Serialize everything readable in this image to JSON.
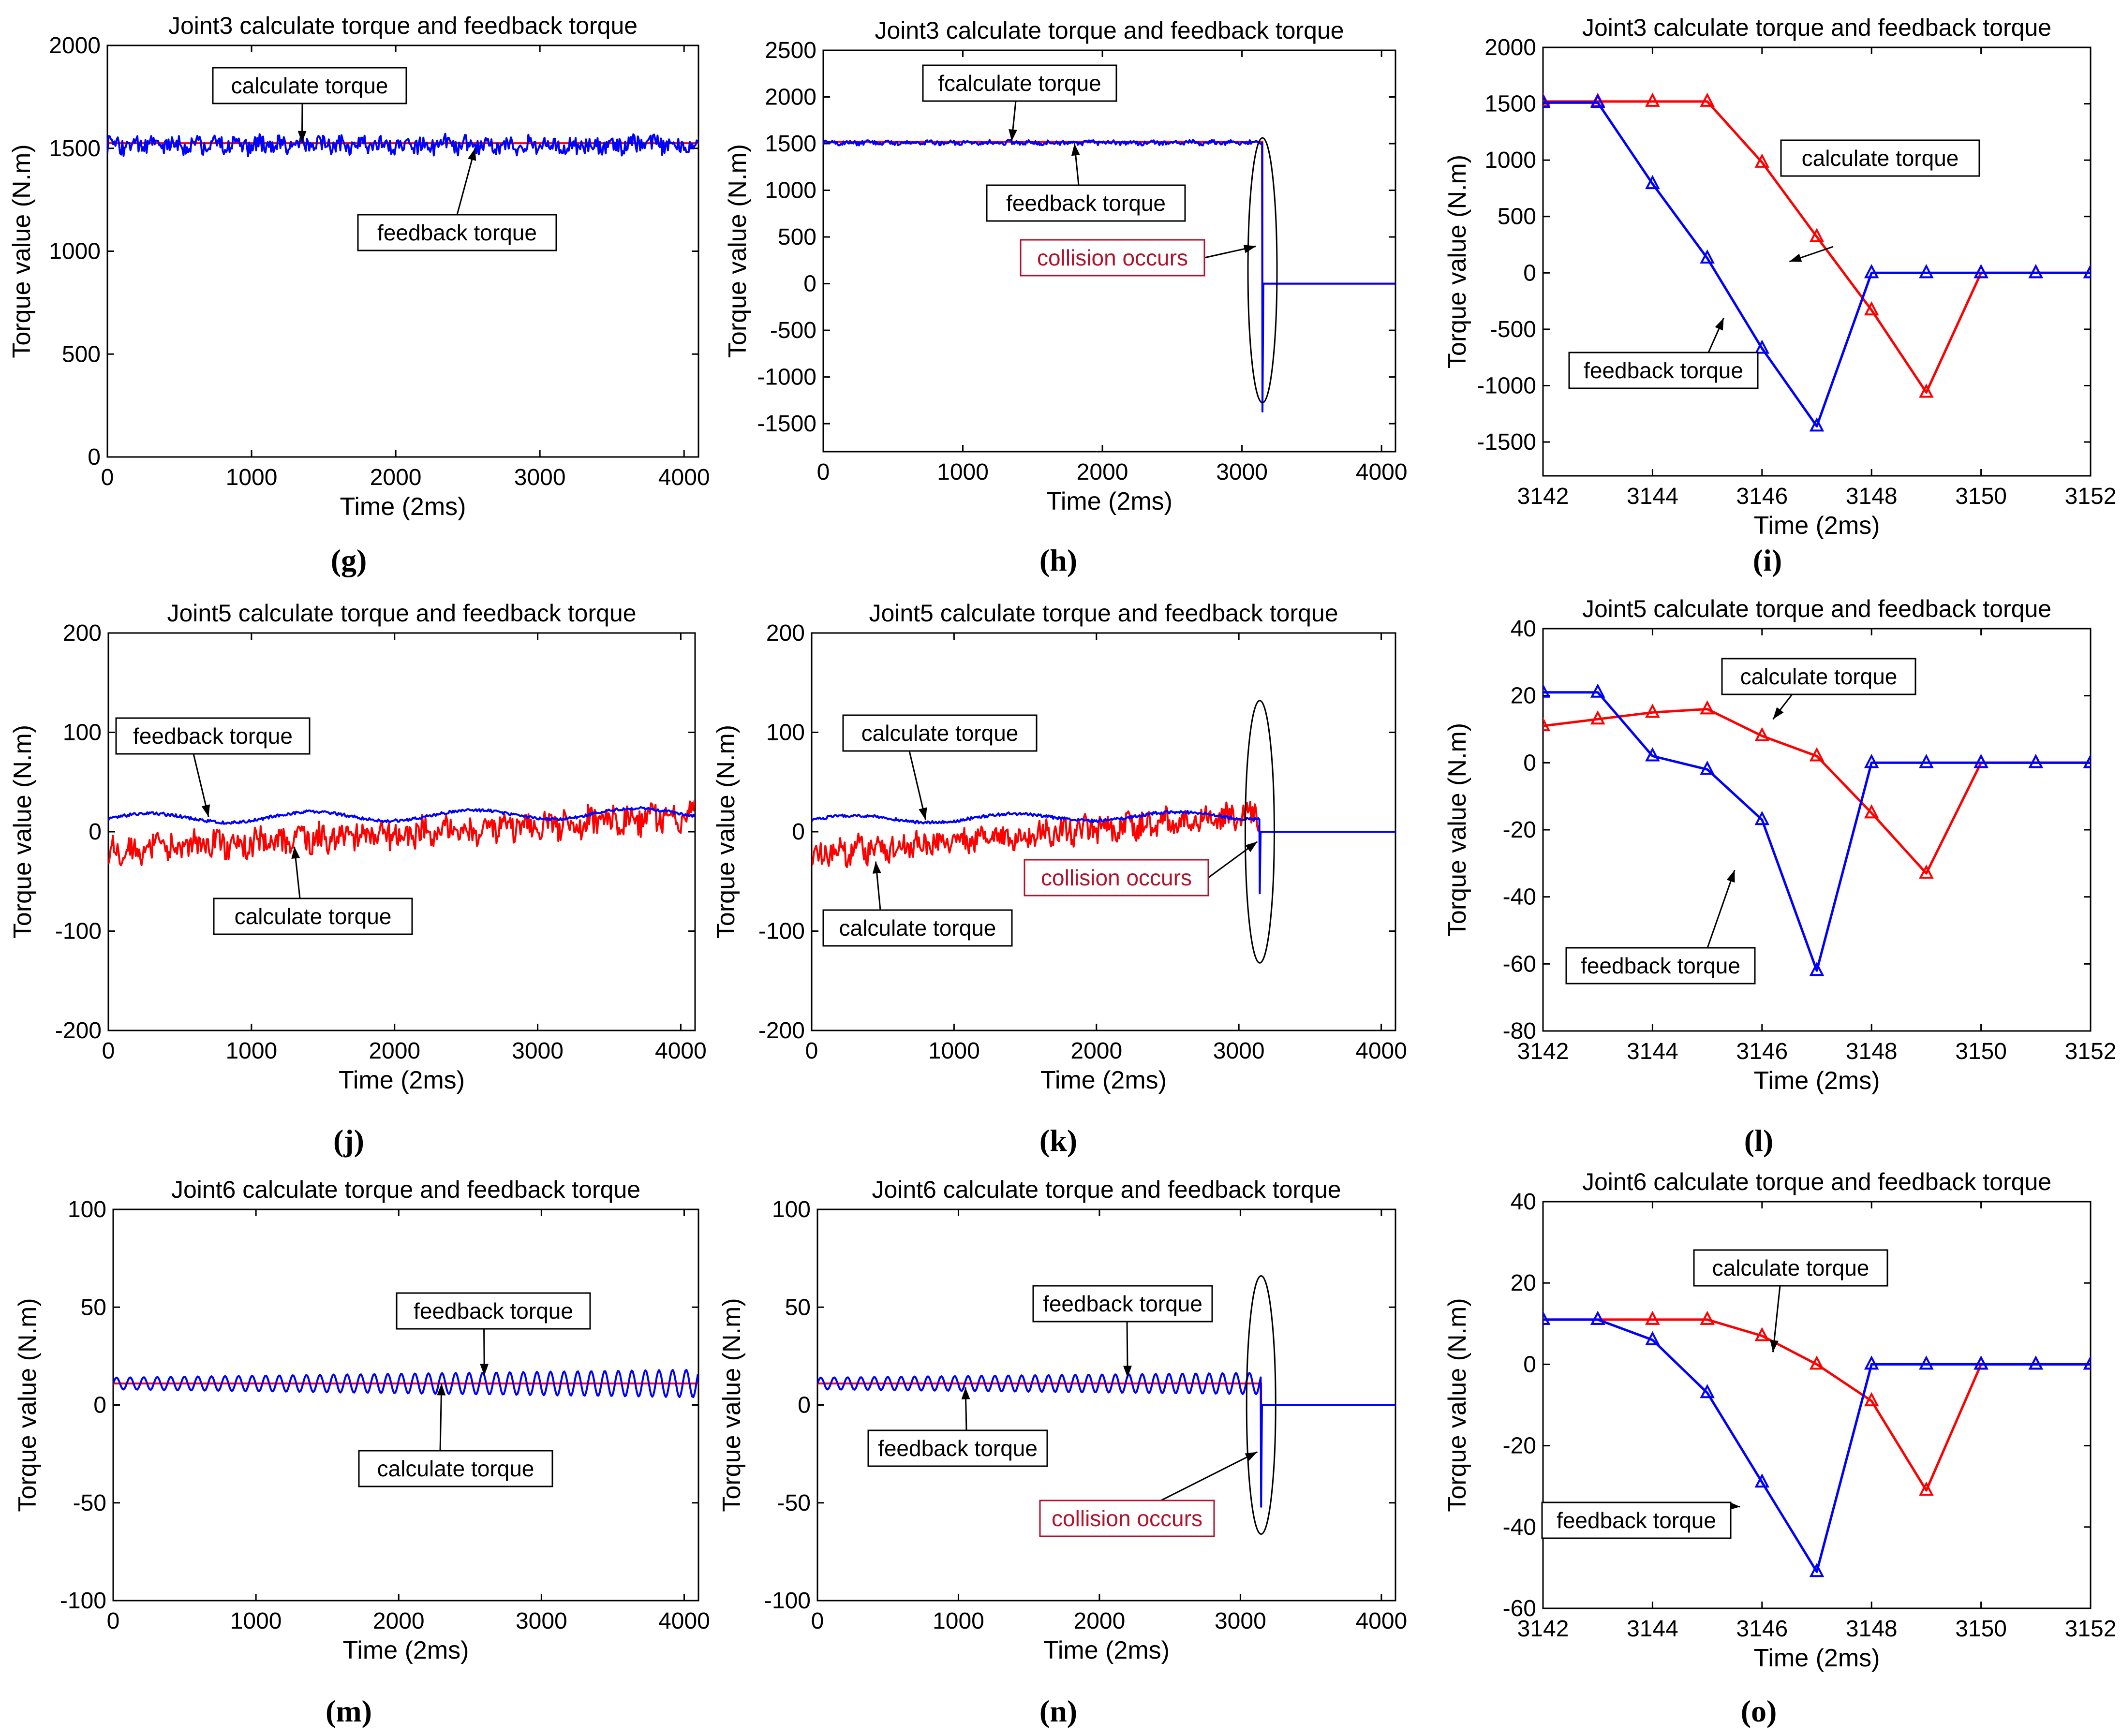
{
  "figure": {
    "background": "#ffffff",
    "colors": {
      "calculate": "#ff0000",
      "feedback": "#0000ff",
      "frame": "#000000",
      "collision_text": "#b3122a"
    }
  },
  "chart_data": [
    {
      "id": "g",
      "type": "line",
      "panel_label": "(g)",
      "title": "Joint3 calculate torque and feedback torque",
      "xlabel": "Time (2ms)",
      "ylabel": "Torque value (N.m)",
      "xlim": [
        0,
        4100
      ],
      "ylim": [
        0,
        2000
      ],
      "xticks": [
        0,
        1000,
        2000,
        3000,
        4000
      ],
      "xtick_labels": [
        "0",
        "1000",
        "2000",
        "3000",
        "4000"
      ],
      "yticks": [
        0,
        500,
        1000,
        1500,
        2000
      ],
      "ytick_labels": [
        "0",
        "500",
        "1000",
        "1500",
        "2000"
      ],
      "series": [
        {
          "name": "calculate torque",
          "color": "#ff0000",
          "kind": "flat",
          "level": 1525,
          "x_end": 4100
        },
        {
          "name": "feedback torque",
          "color": "#0000ff",
          "kind": "noise",
          "base": 1515,
          "amp": 40,
          "slope": 0,
          "x_end": 4100
        }
      ],
      "annotations": [
        {
          "text": "calculate torque",
          "target_x": 1350,
          "target_y": 1527,
          "style": "normal"
        },
        {
          "text": "feedback torque",
          "target_x": 2550,
          "target_y": 1500,
          "style": "normal"
        }
      ]
    },
    {
      "id": "h",
      "type": "line",
      "panel_label": "(h)",
      "title": "Joint3 calculate torque and feedback torque",
      "xlabel": "Time (2ms)",
      "ylabel": "Torque value (N.m)",
      "xlim": [
        0,
        4100
      ],
      "ylim": [
        -1800,
        2500
      ],
      "xticks": [
        0,
        1000,
        2000,
        3000,
        4000
      ],
      "xtick_labels": [
        "0",
        "1000",
        "2000",
        "3000",
        "4000"
      ],
      "yticks": [
        -1500,
        -1000,
        -500,
        0,
        500,
        1000,
        1500,
        2000,
        2500
      ],
      "ytick_labels": [
        "-1500",
        "-1000",
        "-500",
        "0",
        "500",
        "1000",
        "1500",
        "2000",
        "2500"
      ],
      "collision_x": 3147,
      "series": [
        {
          "name": "calculate torque",
          "color": "#ff0000",
          "kind": "flat",
          "level": 1520,
          "x_end": 3147
        },
        {
          "name": "feedback torque",
          "color": "#0000ff",
          "kind": "noise_collision",
          "base": 1510,
          "amp": 22,
          "slope": 0,
          "x_end": 3147,
          "drop": -1370
        }
      ],
      "annotations": [
        {
          "text": "fcalculate torque",
          "target_x": 1350,
          "target_y": 1525,
          "style": "normal"
        },
        {
          "text": "feedback torque",
          "target_x": 1800,
          "target_y": 1500,
          "style": "normal"
        },
        {
          "text": "collision occurs",
          "target_x": 3100,
          "target_y": 400,
          "style": "red"
        }
      ]
    },
    {
      "id": "i",
      "type": "line",
      "panel_label": "(i)",
      "title": "Joint3 calculate torque and feedback torque",
      "xlabel": "Time (2ms)",
      "ylabel": "Torque value (N.m)",
      "xlim": [
        3142,
        3152
      ],
      "ylim": [
        -1800,
        2000
      ],
      "xticks": [
        3142,
        3144,
        3146,
        3148,
        3150,
        3152
      ],
      "xtick_labels": [
        "3142",
        "3144",
        "3146",
        "3148",
        "3150",
        "3152"
      ],
      "yticks": [
        -1500,
        -1000,
        -500,
        0,
        500,
        1000,
        1500,
        2000
      ],
      "ytick_labels": [
        "-1500",
        "-1000",
        "-500",
        "0",
        "500",
        "1000",
        "1500",
        "2000"
      ],
      "series": [
        {
          "name": "calculate torque",
          "color": "#ff0000",
          "kind": "points",
          "x": [
            3142,
            3143,
            3144,
            3145,
            3146,
            3147,
            3148,
            3149,
            3150,
            3151,
            3152
          ],
          "y": [
            1520,
            1520,
            1520,
            1520,
            980,
            320,
            -330,
            -1060,
            0,
            0,
            0
          ]
        },
        {
          "name": "feedback torque",
          "color": "#0000ff",
          "kind": "points",
          "x": [
            3142,
            3143,
            3144,
            3145,
            3146,
            3147,
            3148,
            3149,
            3150,
            3151,
            3152
          ],
          "y": [
            1510,
            1510,
            790,
            130,
            -670,
            -1360,
            0,
            0,
            0,
            0,
            0
          ]
        }
      ],
      "annotations": [
        {
          "text": "calculate torque",
          "target_x": 3146.5,
          "target_y": 100,
          "style": "normal"
        },
        {
          "text": "feedback torque",
          "target_x": 3145.3,
          "target_y": -400,
          "style": "normal"
        }
      ]
    },
    {
      "id": "j",
      "type": "line",
      "panel_label": "(j)",
      "title": "Joint5 calculate torque and feedback torque",
      "xlabel": "Time (2ms)",
      "ylabel": "Torque value (N.m)",
      "xlim": [
        0,
        4100
      ],
      "ylim": [
        -200,
        200
      ],
      "xticks": [
        0,
        1000,
        2000,
        3000,
        4000
      ],
      "xtick_labels": [
        "0",
        "1000",
        "2000",
        "3000",
        "4000"
      ],
      "yticks": [
        -200,
        -100,
        0,
        100,
        200
      ],
      "ytick_labels": [
        "-200",
        "-100",
        "0",
        "100",
        "200"
      ],
      "series": [
        {
          "name": "calculate torque",
          "color": "#ff0000",
          "kind": "noise",
          "base": -20,
          "amp": 13,
          "slope": 0.0088,
          "x_end": 4100
        },
        {
          "name": "feedback torque",
          "color": "#0000ff",
          "kind": "wave",
          "base": 13,
          "amp": 5,
          "slope": 0.0015,
          "x_end": 4100
        }
      ],
      "annotations": [
        {
          "text": "feedback torque",
          "target_x": 700,
          "target_y": 15,
          "style": "normal"
        },
        {
          "text": "calculate torque",
          "target_x": 1300,
          "target_y": -15,
          "style": "normal"
        }
      ]
    },
    {
      "id": "k",
      "type": "line",
      "panel_label": "(k)",
      "title": "Joint5 calculate torque and feedback torque",
      "xlabel": "Time (2ms)",
      "ylabel": "Torque value (N.m)",
      "xlim": [
        0,
        4100
      ],
      "ylim": [
        -200,
        200
      ],
      "xticks": [
        0,
        1000,
        2000,
        3000,
        4000
      ],
      "xtick_labels": [
        "0",
        "1000",
        "2000",
        "3000",
        "4000"
      ],
      "yticks": [
        -200,
        -100,
        0,
        100,
        200
      ],
      "ytick_labels": [
        "-200",
        "-100",
        "0",
        "100",
        "200"
      ],
      "collision_x": 3147,
      "series": [
        {
          "name": "calculate torque",
          "color": "#ff0000",
          "kind": "noise",
          "base": -22,
          "amp": 12,
          "slope": 0.0125,
          "x_end": 3147
        },
        {
          "name": "feedback torque",
          "color": "#0000ff",
          "kind": "wave_collision",
          "base": 12,
          "amp": 4,
          "slope": 0.0015,
          "x_end": 3147,
          "drop": -62
        }
      ],
      "annotations": [
        {
          "text": "calculate torque",
          "target_x": 800,
          "target_y": 12,
          "style": "normal"
        },
        {
          "text": "calculate torque",
          "target_x": 450,
          "target_y": -30,
          "style": "normal"
        },
        {
          "text": "collision occurs",
          "target_x": 3130,
          "target_y": -10,
          "style": "red"
        }
      ]
    },
    {
      "id": "l",
      "type": "line",
      "panel_label": "(l)",
      "title": "Joint5 calculate torque and feedback torque",
      "xlabel": "Time (2ms)",
      "ylabel": "Torque value (N.m)",
      "xlim": [
        3142,
        3152
      ],
      "ylim": [
        -80,
        40
      ],
      "xticks": [
        3142,
        3144,
        3146,
        3148,
        3150,
        3152
      ],
      "xtick_labels": [
        "3142",
        "3144",
        "3146",
        "3148",
        "3150",
        "3152"
      ],
      "yticks": [
        -80,
        -60,
        -40,
        -20,
        0,
        20,
        40
      ],
      "ytick_labels": [
        "-80",
        "-60",
        "-40",
        "-20",
        "0",
        "20",
        "40"
      ],
      "series": [
        {
          "name": "calculate torque",
          "color": "#ff0000",
          "kind": "points",
          "x": [
            3142,
            3143,
            3144,
            3145,
            3146,
            3147,
            3148,
            3149,
            3150,
            3151,
            3152
          ],
          "y": [
            11,
            13,
            15,
            16,
            8,
            2,
            -15,
            -33,
            0,
            0,
            0
          ]
        },
        {
          "name": "feedback torque",
          "color": "#0000ff",
          "kind": "points",
          "x": [
            3142,
            3143,
            3144,
            3145,
            3146,
            3147,
            3148,
            3149,
            3150,
            3151,
            3152
          ],
          "y": [
            21,
            21,
            2,
            -2,
            -17,
            -62,
            0,
            0,
            0,
            0,
            0
          ]
        }
      ],
      "annotations": [
        {
          "text": "calculate torque",
          "target_x": 3146.2,
          "target_y": 13,
          "style": "normal"
        },
        {
          "text": "feedback torque",
          "target_x": 3145.5,
          "target_y": -32,
          "style": "normal"
        }
      ]
    },
    {
      "id": "m",
      "type": "line",
      "panel_label": "(m)",
      "title": "Joint6 calculate torque and feedback torque",
      "xlabel": "Time (2ms)",
      "ylabel": "Torque value (N.m)",
      "xlim": [
        0,
        4100
      ],
      "ylim": [
        -100,
        100
      ],
      "xticks": [
        0,
        1000,
        2000,
        3000,
        4000
      ],
      "xtick_labels": [
        "0",
        "1000",
        "2000",
        "3000",
        "4000"
      ],
      "yticks": [
        -100,
        -50,
        0,
        50,
        100
      ],
      "ytick_labels": [
        "-100",
        "-50",
        "0",
        "50",
        "100"
      ],
      "series": [
        {
          "name": "calculate torque",
          "color": "#ff0000",
          "kind": "flat",
          "level": 11,
          "x_end": 4100
        },
        {
          "name": "feedback torque",
          "color": "#0000ff",
          "kind": "sine",
          "base": 11,
          "amp": 3,
          "grow": 0.001,
          "period": 95,
          "x_end": 4100
        }
      ],
      "annotations": [
        {
          "text": "feedback torque",
          "target_x": 2600,
          "target_y": 15,
          "style": "normal"
        },
        {
          "text": "calculate torque",
          "target_x": 2300,
          "target_y": 11,
          "style": "normal"
        }
      ]
    },
    {
      "id": "n",
      "type": "line",
      "panel_label": "(n)",
      "title": "Joint6 calculate torque and feedback torque",
      "xlabel": "Time (2ms)",
      "ylabel": "Torque value (N.m)",
      "xlim": [
        0,
        4100
      ],
      "ylim": [
        -100,
        100
      ],
      "xticks": [
        0,
        1000,
        2000,
        3000,
        4000
      ],
      "xtick_labels": [
        "0",
        "1000",
        "2000",
        "3000",
        "4000"
      ],
      "yticks": [
        -100,
        -50,
        0,
        50,
        100
      ],
      "ytick_labels": [
        "-100",
        "-50",
        "0",
        "50",
        "100"
      ],
      "collision_x": 3147,
      "series": [
        {
          "name": "calculate torque",
          "color": "#ff0000",
          "kind": "flat",
          "level": 11,
          "x_end": 3147
        },
        {
          "name": "feedback torque",
          "color": "#0000ff",
          "kind": "sine_collision",
          "base": 11,
          "amp": 3,
          "grow": 0.0008,
          "period": 95,
          "x_end": 3147,
          "drop": -52
        }
      ],
      "annotations": [
        {
          "text": "feedback torque",
          "target_x": 2200,
          "target_y": 14,
          "style": "normal"
        },
        {
          "text": "feedback torque",
          "target_x": 1050,
          "target_y": 9,
          "style": "normal"
        },
        {
          "text": "collision occurs",
          "target_x": 3120,
          "target_y": -24,
          "style": "red"
        }
      ]
    },
    {
      "id": "o",
      "type": "line",
      "panel_label": "(o)",
      "title": "Joint6 calculate torque and feedback torque",
      "xlabel": "Time (2ms)",
      "ylabel": "Torque value (N.m)",
      "xlim": [
        3142,
        3152
      ],
      "ylim": [
        -60,
        40
      ],
      "xticks": [
        3142,
        3144,
        3146,
        3148,
        3150,
        3152
      ],
      "xtick_labels": [
        "3142",
        "3144",
        "3146",
        "3148",
        "3150",
        "3152"
      ],
      "yticks": [
        -60,
        -40,
        -20,
        0,
        20,
        40
      ],
      "ytick_labels": [
        "-60",
        "-40",
        "-20",
        "0",
        "20",
        "40"
      ],
      "series": [
        {
          "name": "calculate torque",
          "color": "#ff0000",
          "kind": "points",
          "x": [
            3142,
            3143,
            3144,
            3145,
            3146,
            3147,
            3148,
            3149,
            3150,
            3151,
            3152
          ],
          "y": [
            11,
            11,
            11,
            11,
            7,
            0,
            -9,
            -31,
            0,
            0,
            0
          ]
        },
        {
          "name": "feedback torque",
          "color": "#0000ff",
          "kind": "points",
          "x": [
            3142,
            3143,
            3144,
            3145,
            3146,
            3147,
            3148,
            3149,
            3150,
            3151,
            3152
          ],
          "y": [
            11,
            11,
            6,
            -7,
            -29,
            -51,
            0,
            0,
            0,
            0,
            0
          ]
        }
      ],
      "annotations": [
        {
          "text": "calculate torque",
          "target_x": 3146.2,
          "target_y": 3,
          "style": "normal"
        },
        {
          "text": "feedback torque",
          "target_x": 3145.6,
          "target_y": -35,
          "style": "normal"
        }
      ]
    }
  ]
}
